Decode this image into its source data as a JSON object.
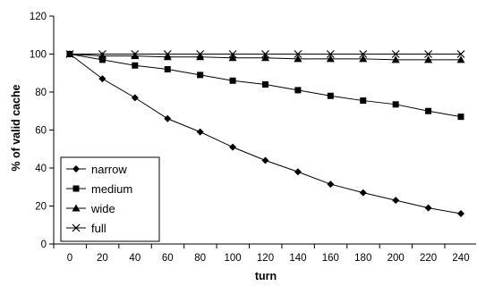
{
  "chart_data": {
    "type": "line",
    "xlabel": "turn",
    "ylabel": "% of valid cache",
    "x": [
      0,
      20,
      40,
      60,
      80,
      100,
      120,
      140,
      160,
      180,
      200,
      220,
      240
    ],
    "xlim": [
      0,
      240
    ],
    "ylim": [
      0,
      120
    ],
    "xticks": [
      "0",
      "20",
      "40",
      "60",
      "80",
      "100",
      "120",
      "140",
      "160",
      "180",
      "200",
      "220",
      "240"
    ],
    "yticks": [
      "0",
      "20",
      "40",
      "60",
      "80",
      "100",
      "120"
    ],
    "grid": false,
    "legend_position": "bottom-left",
    "series": [
      {
        "name": "narrow",
        "marker": "diamond",
        "values": [
          100,
          87,
          77,
          66,
          59,
          51,
          44,
          38,
          31.5,
          27,
          23,
          19,
          16
        ]
      },
      {
        "name": "medium",
        "marker": "square",
        "values": [
          100,
          97,
          94,
          92,
          89,
          86,
          84,
          81,
          78,
          75.5,
          73.5,
          70,
          67
        ]
      },
      {
        "name": "wide",
        "marker": "triangle",
        "values": [
          100,
          99,
          99,
          98.5,
          98.5,
          98,
          98,
          97.5,
          97.5,
          97.5,
          97,
          97,
          97
        ]
      },
      {
        "name": "full",
        "marker": "x",
        "values": [
          100,
          100,
          100,
          100,
          100,
          100,
          100,
          100,
          100,
          100,
          100,
          100,
          100
        ]
      }
    ]
  }
}
